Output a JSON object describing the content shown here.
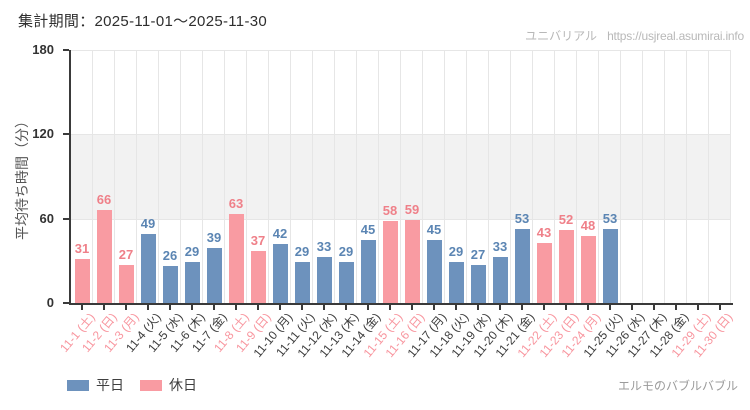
{
  "header": {
    "period_title": "集計期間：2025-11-01～2025-11-30",
    "watermark_brand": "ユニバリアル",
    "watermark_url": "https://usjreal.asumirai.info"
  },
  "footer": {
    "attraction_name": "エルモのバブルバブル"
  },
  "legend": {
    "weekday_label": "平日",
    "holiday_label": "休日"
  },
  "colors": {
    "weekday_bar": "#6d92bd",
    "holiday_bar": "#f99ba2",
    "weekday_value_text": "#5b85b3",
    "holiday_value_text": "#ef8089",
    "weekday_axis_text": "#3c3c3c",
    "holiday_axis_text": "#f8959e",
    "band": "#f2f2f2",
    "gridline": "#e6e6e6",
    "axis": "#3a3a3a"
  },
  "chart_data": {
    "type": "bar",
    "title": "集計期間：2025-11-01～2025-11-30",
    "ylabel": "平均待ち時間（分）",
    "xlabel": "",
    "ylim": [
      0,
      180
    ],
    "yticks": [
      0,
      60,
      120,
      180
    ],
    "shaded_band_y": [
      60,
      120
    ],
    "grid": "vertical-per-category",
    "legend_position": "bottom-left",
    "categories": [
      "11-1 (土)",
      "11-2 (日)",
      "11-3 (月)",
      "11-4 (火)",
      "11-5 (水)",
      "11-6 (木)",
      "11-7 (金)",
      "11-8 (土)",
      "11-9 (日)",
      "11-10 (月)",
      "11-11 (火)",
      "11-12 (水)",
      "11-13 (木)",
      "11-14 (金)",
      "11-15 (土)",
      "11-16 (日)",
      "11-17 (月)",
      "11-18 (火)",
      "11-19 (水)",
      "11-20 (木)",
      "11-21 (金)",
      "11-22 (土)",
      "11-23 (日)",
      "11-24 (月)",
      "11-25 (火)",
      "11-26 (水)",
      "11-27 (木)",
      "11-28 (金)",
      "11-29 (土)",
      "11-30 (日)"
    ],
    "day_types": [
      "holiday",
      "holiday",
      "holiday",
      "weekday",
      "weekday",
      "weekday",
      "weekday",
      "holiday",
      "holiday",
      "weekday",
      "weekday",
      "weekday",
      "weekday",
      "weekday",
      "holiday",
      "holiday",
      "weekday",
      "weekday",
      "weekday",
      "weekday",
      "weekday",
      "holiday",
      "holiday",
      "holiday",
      "weekday",
      "weekday",
      "weekday",
      "weekday",
      "holiday",
      "holiday"
    ],
    "values": [
      31,
      66,
      27,
      49,
      26,
      29,
      39,
      63,
      37,
      42,
      29,
      33,
      29,
      45,
      58,
      59,
      45,
      29,
      27,
      33,
      53,
      43,
      52,
      48,
      53,
      null,
      null,
      null,
      null,
      null
    ]
  }
}
